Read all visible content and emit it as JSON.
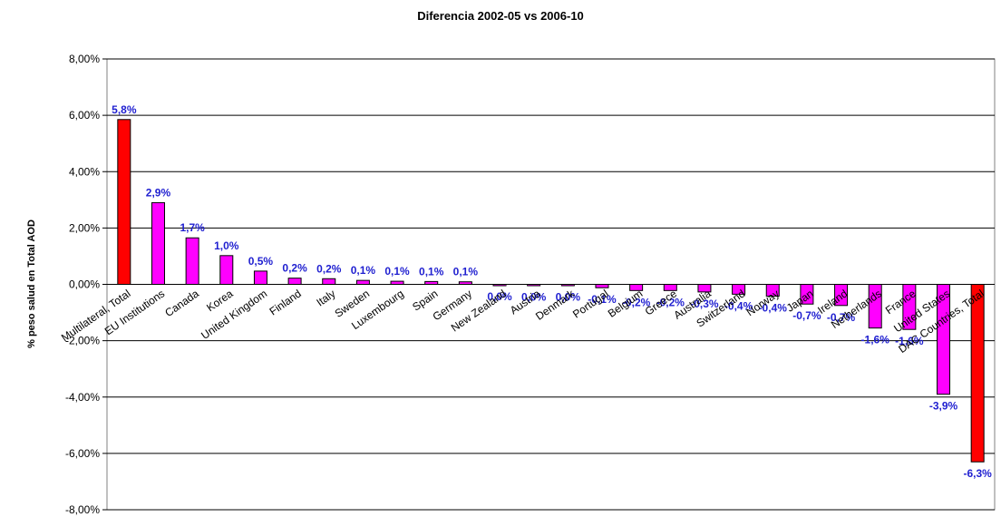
{
  "chart_data": {
    "type": "bar",
    "title": "Diferencia 2002-05 vs 2006-10",
    "xlabel": "",
    "ylabel": "% peso salud en Total AOD",
    "ylim": [
      -8,
      8
    ],
    "yticks": [
      8,
      6,
      4,
      2,
      0,
      -2,
      -4,
      -6,
      -8
    ],
    "ytick_labels": [
      "8,00%",
      "6,00%",
      "4,00%",
      "2,00%",
      "0,00%",
      "-2,00%",
      "-4,00%",
      "-6,00%",
      "-8,00%"
    ],
    "grid": true,
    "categories": [
      "Multilateral, Total",
      "EU Institutions",
      "Canada",
      "Korea",
      "United Kingdom",
      "Finland",
      "Italy",
      "Sweden",
      "Luxembourg",
      "Spain",
      "Germany",
      "New Zealand",
      "Austria",
      "Denmark",
      "Portugal",
      "Belgium",
      "Greece",
      "Australia",
      "Switzerland",
      "Norway",
      "Japan",
      "Ireland",
      "Netherlands",
      "France",
      "United States",
      "DAC Countries, Total"
    ],
    "values": [
      5.85,
      2.9,
      1.65,
      1.02,
      0.47,
      0.22,
      0.2,
      0.14,
      0.11,
      0.1,
      0.09,
      0.02,
      0.03,
      0.03,
      0.12,
      0.22,
      0.22,
      0.27,
      0.35,
      0.42,
      0.7,
      0.75,
      1.55,
      1.6,
      3.9,
      6.3
    ],
    "signs": [
      1,
      1,
      1,
      1,
      1,
      1,
      1,
      1,
      1,
      1,
      1,
      -1,
      -1,
      -1,
      -1,
      -1,
      -1,
      -1,
      -1,
      -1,
      -1,
      -1,
      -1,
      -1,
      -1,
      -1
    ],
    "data_labels": [
      "5,8%",
      "2,9%",
      "1,7%",
      "1,0%",
      "0,5%",
      "0,2%",
      "0,2%",
      "0,1%",
      "0,1%",
      "0,1%",
      "0,1%",
      "0,0%",
      "0,0%",
      "0,0%",
      "-0,1%",
      "-0,2%",
      "-0,2%",
      "-0,3%",
      "-0,4%",
      "-0,4%",
      "-0,7%",
      "-0,7%",
      "-1,6%",
      "-1,6%",
      "-3,9%",
      "-6,3%"
    ],
    "highlight": [
      0,
      25
    ],
    "colors": {
      "bar": "#ff00ff",
      "highlight": "#ff0000",
      "bar_stroke": "#000000",
      "label": "#1f1fd0",
      "grid": "#000000"
    }
  }
}
